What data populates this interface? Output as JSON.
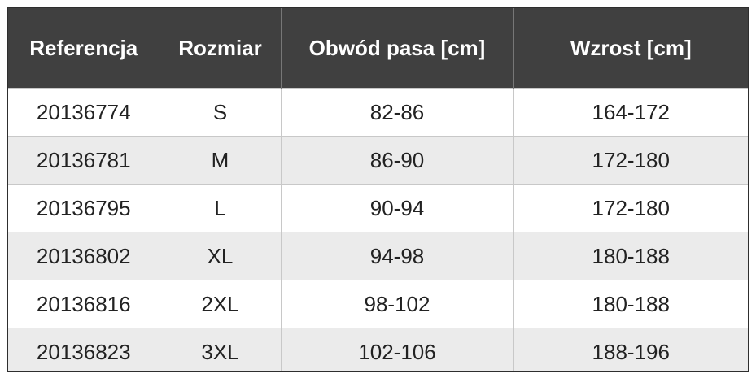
{
  "table": {
    "header": [
      "Referencja",
      "Rozmiar",
      "Obwód pasa [cm]",
      "Wzrost [cm]"
    ],
    "rows": [
      [
        "20136774",
        "S",
        "82-86",
        "164-172"
      ],
      [
        "20136781",
        "M",
        "86-90",
        "172-180"
      ],
      [
        "20136795",
        "L",
        "90-94",
        "172-180"
      ],
      [
        "20136802",
        "XL",
        "94-98",
        "180-188"
      ],
      [
        "20136816",
        "2XL",
        "98-102",
        "180-188"
      ],
      [
        "20136823",
        "3XL",
        "102-106",
        "188-196"
      ]
    ]
  }
}
